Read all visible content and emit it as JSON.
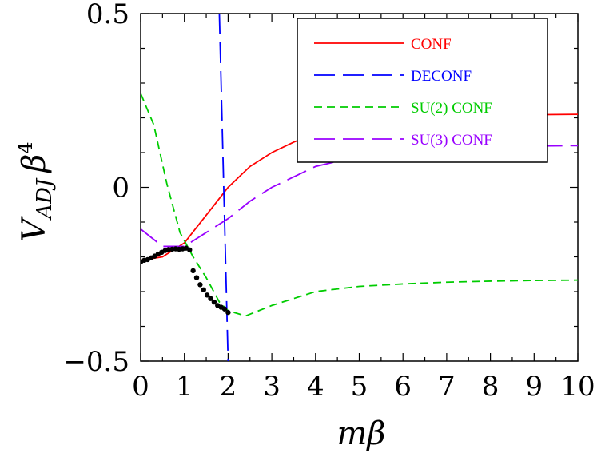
{
  "chart_data": {
    "type": "line",
    "title": "",
    "xlabel": "mβ",
    "ylabel_main": "V",
    "ylabel_sub": "ADJ",
    "ylabel_beta": "β",
    "ylabel_sup": "4",
    "xlim": [
      0,
      10
    ],
    "ylim": [
      -0.5,
      0.5
    ],
    "x_ticks": [
      "0",
      "1",
      "2",
      "3",
      "4",
      "5",
      "6",
      "7",
      "8",
      "9",
      "10"
    ],
    "y_ticks": [
      "−0.5",
      "0",
      "0.5"
    ],
    "y_tick_values": [
      -0.5,
      0,
      0.5
    ],
    "legend_position": "top-right",
    "series": [
      {
        "name": "CONF",
        "color": "#ff0000",
        "style": "solid",
        "x": [
          0,
          0.5,
          1,
          1.5,
          2,
          2.5,
          3,
          3.5,
          4,
          5,
          6,
          7,
          8,
          9,
          10
        ],
        "y": [
          -0.21,
          -0.2,
          -0.16,
          -0.08,
          0.0,
          0.06,
          0.1,
          0.13,
          0.155,
          0.18,
          0.195,
          0.202,
          0.206,
          0.209,
          0.21
        ]
      },
      {
        "name": "DECONF",
        "color": "#0000ff",
        "style": "longdash",
        "x": [
          1.8,
          2.0
        ],
        "y": [
          0.5,
          -0.5
        ]
      },
      {
        "name": "SU(2) CONF",
        "color": "#00cc00",
        "style": "dash",
        "x": [
          0,
          0.3,
          0.6,
          0.9,
          1.2,
          1.5,
          1.8,
          2.0,
          2.4,
          3,
          4,
          5,
          6,
          7,
          8,
          9,
          10
        ],
        "y": [
          0.27,
          0.18,
          0.01,
          -0.13,
          -0.2,
          -0.26,
          -0.33,
          -0.355,
          -0.37,
          -0.34,
          -0.3,
          -0.285,
          -0.278,
          -0.273,
          -0.27,
          -0.268,
          -0.267
        ]
      },
      {
        "name": "SU(3) CONF",
        "color": "#9900ff",
        "style": "longdash",
        "x": [
          0,
          0.5,
          1,
          1.5,
          2,
          2.5,
          3,
          4,
          5,
          6,
          7,
          8,
          9,
          10
        ],
        "y": [
          -0.12,
          -0.17,
          -0.17,
          -0.13,
          -0.09,
          -0.04,
          0.0,
          0.06,
          0.09,
          0.105,
          0.113,
          0.117,
          0.119,
          0.12
        ]
      }
    ],
    "points": {
      "name": "",
      "color": "#000000",
      "x": [
        0,
        0.08,
        0.16,
        0.24,
        0.32,
        0.4,
        0.48,
        0.56,
        0.64,
        0.72,
        0.8,
        0.88,
        0.96,
        1.04,
        1.12,
        1.2,
        1.28,
        1.36,
        1.44,
        1.52,
        1.6,
        1.68,
        1.76,
        1.84,
        1.92,
        2.0
      ],
      "y": [
        -0.215,
        -0.21,
        -0.208,
        -0.203,
        -0.198,
        -0.192,
        -0.187,
        -0.182,
        -0.179,
        -0.178,
        -0.177,
        -0.178,
        -0.177,
        -0.175,
        -0.18,
        -0.24,
        -0.26,
        -0.28,
        -0.295,
        -0.31,
        -0.32,
        -0.33,
        -0.34,
        -0.345,
        -0.35,
        -0.36
      ]
    }
  }
}
